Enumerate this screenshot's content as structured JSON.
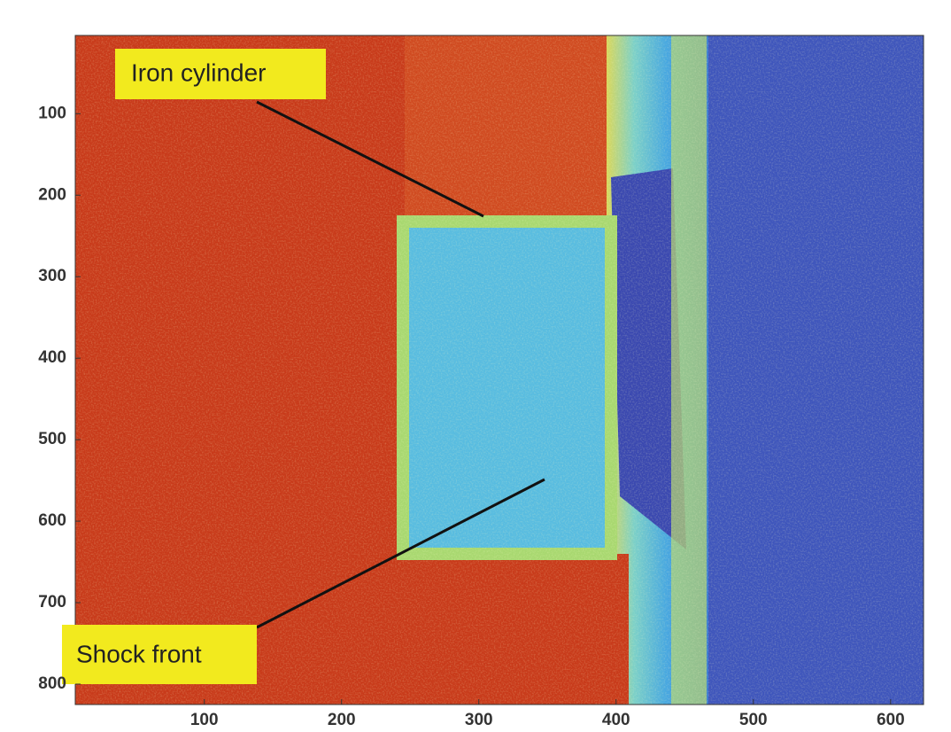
{
  "chart_data": {
    "type": "heatmap",
    "xlim": [
      6,
      624
    ],
    "xticks": [
      100,
      200,
      300,
      400,
      500,
      600
    ],
    "ylim": [
      4,
      825
    ],
    "yticks": [
      100,
      200,
      300,
      400,
      500,
      600,
      700,
      800
    ],
    "annotations": [
      "Iron cylinder",
      "Shock front"
    ]
  }
}
